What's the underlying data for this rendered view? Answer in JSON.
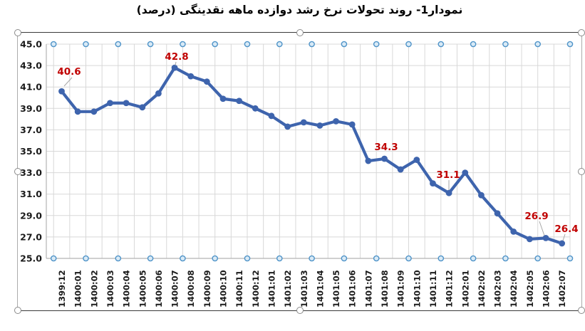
{
  "page": {
    "title": "نمودار1- روند تحولات نرخ رشد دوازده ماهه نقدینگی (درصد)"
  },
  "chart_data": {
    "type": "line",
    "title": "نمودار1- روند تحولات نرخ رشد دوازده ماهه نقدینگی (درصد)",
    "xlabel": "",
    "ylabel": "",
    "ylim": [
      25.0,
      45.0
    ],
    "ytick_step": 2.0,
    "grid": true,
    "legend": "none",
    "categories": [
      "1399:12",
      "1400:01",
      "1400:02",
      "1400:03",
      "1400:04",
      "1400:05",
      "1400:06",
      "1400:07",
      "1400:08",
      "1400:09",
      "1400:10",
      "1400:11",
      "1400:12",
      "1401:01",
      "1401:02",
      "1401:03",
      "1401:04",
      "1401:05",
      "1401:06",
      "1401:07",
      "1401:08",
      "1401:09",
      "1401:10",
      "1401:11",
      "1401:12",
      "1402:01",
      "1402:02",
      "1402:03",
      "1402:04",
      "1402:05",
      "1402:06",
      "1402:07"
    ],
    "values": [
      40.6,
      38.7,
      38.7,
      39.5,
      39.5,
      39.1,
      40.4,
      42.8,
      42.0,
      41.5,
      39.9,
      39.7,
      39.0,
      38.3,
      37.3,
      37.7,
      37.4,
      37.8,
      37.5,
      34.1,
      34.3,
      33.3,
      34.2,
      32.0,
      31.1,
      33.0,
      30.9,
      29.2,
      27.5,
      26.8,
      26.9,
      26.4
    ],
    "point_labels": [
      {
        "index": 0,
        "label": "40.6"
      },
      {
        "index": 7,
        "label": "42.8"
      },
      {
        "index": 20,
        "label": "34.3"
      },
      {
        "index": 24,
        "label": "31.1"
      },
      {
        "index": 30,
        "label": "26.9"
      },
      {
        "index": 31,
        "label": "26.4"
      }
    ],
    "yticks": [
      "45.0",
      "43.0",
      "41.0",
      "39.0",
      "37.0",
      "35.0",
      "33.0",
      "31.0",
      "29.0",
      "27.0",
      "25.0"
    ],
    "marker_rows": {
      "top_value": 45.0,
      "bottom_value": 25.0,
      "every_n_categories": 2
    },
    "colors": {
      "line": "#3E64AD",
      "marker_row_stroke": "#4E93C8",
      "marker_row_fill": "#D9EAF6",
      "data_label": "#C00000",
      "grid": "#D8D8D8",
      "axis_line": "#B3B3B3",
      "axis_text": "#1A1A1A",
      "leader": "#A6A6A6"
    }
  }
}
